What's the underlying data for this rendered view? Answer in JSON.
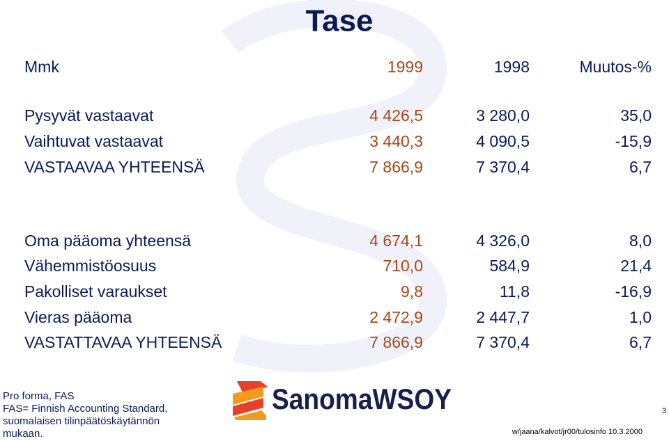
{
  "title": "Tase",
  "table": {
    "header": [
      "Mmk",
      "1999",
      "1998",
      "Muutos-%"
    ],
    "groups": [
      [
        [
          "Pysyvät vastaavat",
          "4 426,5",
          "3 280,0",
          "35,0"
        ],
        [
          "Vaihtuvat vastaavat",
          "3 440,3",
          "4 090,5",
          "-15,9"
        ],
        [
          "VASTAAVAA YHTEENSÄ",
          "7 866,9",
          "7 370,4",
          "6,7"
        ]
      ],
      [
        [
          "Oma pääoma yhteensä",
          "4 674,1",
          "4 326,0",
          "8,0"
        ],
        [
          "Vähemmistöosuus",
          "710,0",
          "584,9",
          "21,4"
        ],
        [
          "Pakolliset varaukset",
          "9,8",
          "11,8",
          "-16,9"
        ],
        [
          "Vieras pääoma",
          "2 472,9",
          "2 447,7",
          "1,0"
        ],
        [
          "VASTATTAVAA YHTEENSÄ",
          "7 866,9",
          "7 370,4",
          "6,7"
        ]
      ]
    ]
  },
  "logo": "SanomaWSOY",
  "footer": {
    "notes": [
      "Pro forma, FAS",
      "FAS= Finnish Accounting Standard,",
      "suomalaisen tilinpäätöskäytännön",
      "mukaan."
    ],
    "page": "3",
    "source": "w/jaana/kalvot/jr00/tulosinfo 10.3.2000"
  }
}
